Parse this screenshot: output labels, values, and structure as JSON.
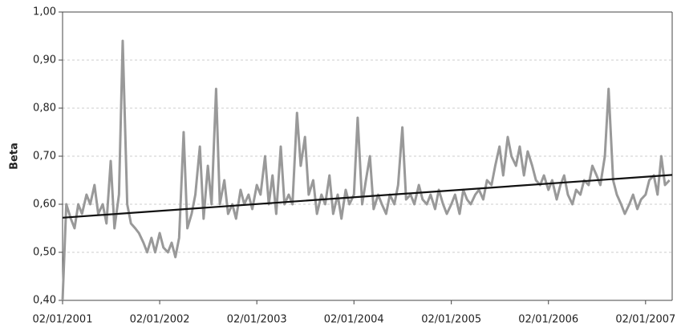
{
  "chart_data": {
    "type": "line",
    "ylabel": "Beta",
    "ylim": [
      0.4,
      1.0
    ],
    "yticks": [
      {
        "value": 0.4,
        "label": "0,40"
      },
      {
        "value": 0.5,
        "label": "0,50"
      },
      {
        "value": 0.6,
        "label": "0,60"
      },
      {
        "value": 0.7,
        "label": "0,70"
      },
      {
        "value": 0.8,
        "label": "0,80"
      },
      {
        "value": 0.9,
        "label": "0,90"
      },
      {
        "value": 1.0,
        "label": "1,00"
      }
    ],
    "xlim": [
      "2001-01-02",
      "2007-04-12"
    ],
    "xticks": [
      {
        "value": "2001-01-02",
        "label": "02/01/2001"
      },
      {
        "value": "2002-01-02",
        "label": "02/01/2002"
      },
      {
        "value": "2003-01-02",
        "label": "02/01/2003"
      },
      {
        "value": "2004-01-02",
        "label": "02/01/2004"
      },
      {
        "value": "2005-01-02",
        "label": "02/01/2005"
      },
      {
        "value": "2006-01-02",
        "label": "02/01/2006"
      },
      {
        "value": "2007-01-02",
        "label": "02/01/2007"
      }
    ],
    "grid": true,
    "series": [
      {
        "color": "#999999",
        "x": [
          "2001-01-02",
          "2001-01-16",
          "2001-02-02",
          "2001-02-16",
          "2001-03-02",
          "2001-03-16",
          "2001-04-02",
          "2001-04-16",
          "2001-05-02",
          "2001-05-16",
          "2001-06-02",
          "2001-06-16",
          "2001-07-02",
          "2001-07-16",
          "2001-08-02",
          "2001-08-16",
          "2001-09-02",
          "2001-09-16",
          "2001-10-02",
          "2001-10-16",
          "2001-11-02",
          "2001-11-16",
          "2001-12-02",
          "2001-12-16",
          "2002-01-02",
          "2002-01-16",
          "2002-02-02",
          "2002-02-16",
          "2002-03-02",
          "2002-03-16",
          "2002-04-02",
          "2002-04-16",
          "2002-05-02",
          "2002-05-16",
          "2002-06-02",
          "2002-06-16",
          "2002-07-02",
          "2002-07-16",
          "2002-08-02",
          "2002-08-16",
          "2002-09-02",
          "2002-09-16",
          "2002-10-02",
          "2002-10-16",
          "2002-11-02",
          "2002-11-16",
          "2002-12-02",
          "2002-12-16",
          "2003-01-02",
          "2003-01-16",
          "2003-02-02",
          "2003-02-16",
          "2003-03-02",
          "2003-03-16",
          "2003-04-02",
          "2003-04-16",
          "2003-05-02",
          "2003-05-16",
          "2003-06-02",
          "2003-06-16",
          "2003-07-02",
          "2003-07-16",
          "2003-08-02",
          "2003-08-16",
          "2003-09-02",
          "2003-09-16",
          "2003-10-02",
          "2003-10-16",
          "2003-11-02",
          "2003-11-16",
          "2003-12-02",
          "2003-12-16",
          "2004-01-02",
          "2004-01-16",
          "2004-02-02",
          "2004-02-16",
          "2004-03-02",
          "2004-03-16",
          "2004-04-02",
          "2004-04-16",
          "2004-05-02",
          "2004-05-16",
          "2004-06-02",
          "2004-06-16",
          "2004-07-02",
          "2004-07-16",
          "2004-08-02",
          "2004-08-16",
          "2004-09-02",
          "2004-09-16",
          "2004-10-02",
          "2004-10-16",
          "2004-11-02",
          "2004-11-16",
          "2004-12-02",
          "2004-12-16",
          "2005-01-02",
          "2005-01-16",
          "2005-02-02",
          "2005-02-16",
          "2005-03-02",
          "2005-03-16",
          "2005-04-02",
          "2005-04-16",
          "2005-05-02",
          "2005-05-16",
          "2005-06-02",
          "2005-06-16",
          "2005-07-02",
          "2005-07-16",
          "2005-08-02",
          "2005-08-16",
          "2005-09-02",
          "2005-09-16",
          "2005-10-02",
          "2005-10-16",
          "2005-11-02",
          "2005-11-16",
          "2005-12-02",
          "2005-12-16",
          "2006-01-02",
          "2006-01-16",
          "2006-02-02",
          "2006-02-16",
          "2006-03-02",
          "2006-03-16",
          "2006-04-02",
          "2006-04-16",
          "2006-05-02",
          "2006-05-16",
          "2006-06-02",
          "2006-06-16",
          "2006-07-02",
          "2006-07-16",
          "2006-08-02",
          "2006-08-16",
          "2006-09-02",
          "2006-09-16",
          "2006-10-02",
          "2006-10-16",
          "2006-11-02",
          "2006-11-16",
          "2006-12-02",
          "2006-12-16",
          "2007-01-02",
          "2007-01-16",
          "2007-02-02",
          "2007-02-16",
          "2007-03-02",
          "2007-03-16",
          "2007-04-02"
        ],
        "values": [
          0.4,
          0.6,
          0.57,
          0.55,
          0.6,
          0.58,
          0.62,
          0.6,
          0.64,
          0.58,
          0.6,
          0.56,
          0.69,
          0.55,
          0.62,
          0.94,
          0.6,
          0.56,
          0.55,
          0.54,
          0.52,
          0.5,
          0.53,
          0.5,
          0.54,
          0.51,
          0.5,
          0.52,
          0.49,
          0.53,
          0.75,
          0.55,
          0.58,
          0.62,
          0.72,
          0.57,
          0.68,
          0.6,
          0.84,
          0.6,
          0.65,
          0.58,
          0.6,
          0.57,
          0.63,
          0.6,
          0.62,
          0.59,
          0.64,
          0.62,
          0.7,
          0.6,
          0.66,
          0.58,
          0.72,
          0.6,
          0.62,
          0.6,
          0.79,
          0.68,
          0.74,
          0.62,
          0.65,
          0.58,
          0.62,
          0.6,
          0.66,
          0.58,
          0.62,
          0.57,
          0.63,
          0.6,
          0.62,
          0.78,
          0.6,
          0.65,
          0.7,
          0.59,
          0.62,
          0.6,
          0.58,
          0.62,
          0.6,
          0.64,
          0.76,
          0.61,
          0.62,
          0.6,
          0.64,
          0.61,
          0.6,
          0.62,
          0.59,
          0.63,
          0.6,
          0.58,
          0.6,
          0.62,
          0.58,
          0.63,
          0.61,
          0.6,
          0.62,
          0.63,
          0.61,
          0.65,
          0.64,
          0.68,
          0.72,
          0.66,
          0.74,
          0.7,
          0.68,
          0.72,
          0.66,
          0.71,
          0.68,
          0.65,
          0.64,
          0.66,
          0.63,
          0.65,
          0.61,
          0.64,
          0.66,
          0.62,
          0.6,
          0.63,
          0.62,
          0.65,
          0.64,
          0.68,
          0.66,
          0.64,
          0.7,
          0.84,
          0.65,
          0.62,
          0.6,
          0.58,
          0.6,
          0.62,
          0.59,
          0.61,
          0.62,
          0.65,
          0.66,
          0.62,
          0.7,
          0.64,
          0.65
        ]
      },
      {
        "color": "#111111",
        "x": [
          "2001-01-02",
          "2007-04-12"
        ],
        "values": [
          0.572,
          0.661
        ]
      }
    ]
  }
}
